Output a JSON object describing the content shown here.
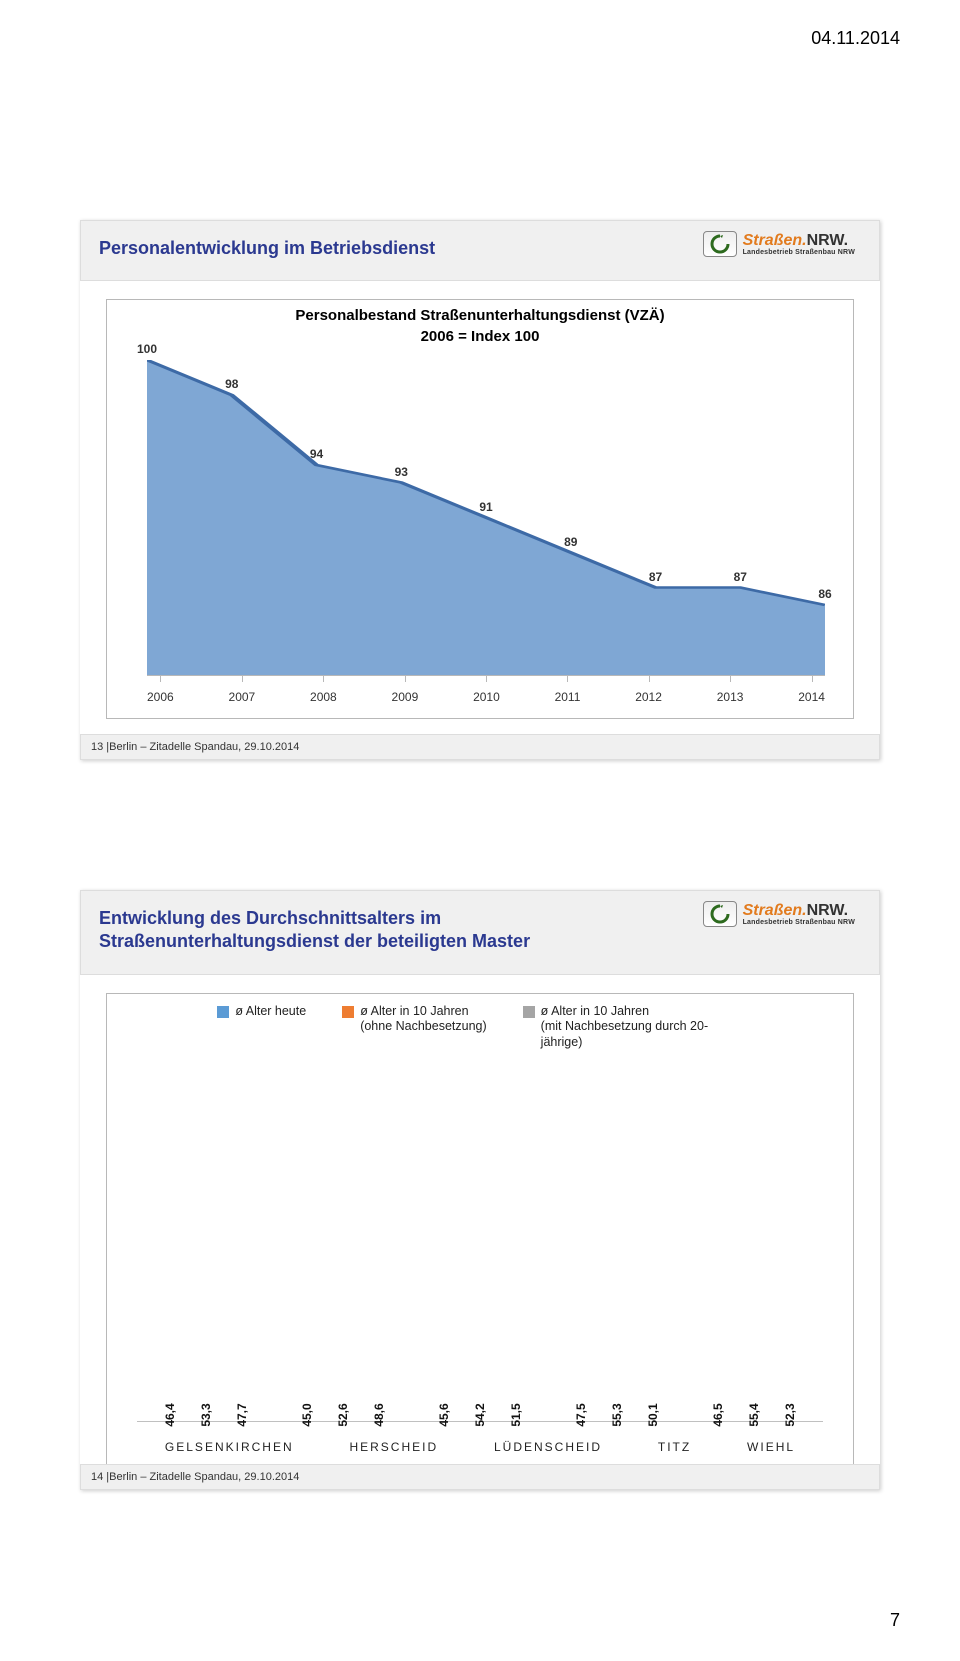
{
  "page": {
    "date_top": "04.11.2014",
    "pagenum": "7"
  },
  "logo": {
    "main_left": "Straßen.",
    "main_right": "NRW.",
    "sub": "Landesbetrieb Straßenbau NRW"
  },
  "slide1": {
    "title": "Personalentwicklung im Betriebsdienst",
    "chart": {
      "type": "area",
      "title_l1": "Personalbestand Straßenunterhaltungsdienst (VZÄ)",
      "title_l2": "2006 = Index 100",
      "categories": [
        "2006",
        "2007",
        "2008",
        "2009",
        "2010",
        "2011",
        "2012",
        "2013",
        "2014"
      ],
      "values": [
        100,
        98,
        94,
        93,
        91,
        89,
        87,
        87,
        86
      ],
      "y_max": 100,
      "y_min": 82,
      "fill_color": "#7fa7d4",
      "line_color": "#3d6aa6"
    },
    "footer": "13 |Berlin – Zitadelle Spandau, 29.10.2014"
  },
  "slide2": {
    "title_l1": "Entwicklung des Durchschnittsalters im",
    "title_l2": "Straßenunterhaltungsdienst der beteiligten Master",
    "chart": {
      "type": "bar",
      "legend": [
        {
          "label": "ø Alter heute",
          "color": "#5b9bd5"
        },
        {
          "label": "ø Alter in 10 Jahren\n(ohne Nachbesetzung)",
          "color": "#ee7d32"
        },
        {
          "label": "ø Alter in 10 Jahren\n(mit Nachbesetzung durch 20-jährige)",
          "color": "#a5a5a5"
        }
      ],
      "y_max": 60,
      "y_min": 0,
      "groups": [
        {
          "name": "GELSENKIRCHEN",
          "values": [
            46.4,
            53.3,
            47.7
          ],
          "labels": [
            "46,4",
            "53,3",
            "47,7"
          ]
        },
        {
          "name": "HERSCHEID",
          "values": [
            45.0,
            52.6,
            48.6
          ],
          "labels": [
            "45,0",
            "52,6",
            "48,6"
          ]
        },
        {
          "name": "LÜDENSCHEID",
          "values": [
            45.6,
            54.2,
            51.5
          ],
          "labels": [
            "45,6",
            "54,2",
            "51,5"
          ]
        },
        {
          "name": "TITZ",
          "values": [
            47.5,
            55.3,
            50.1
          ],
          "labels": [
            "47,5",
            "55,3",
            "50,1"
          ]
        },
        {
          "name": "WIEHL",
          "values": [
            46.5,
            55.4,
            52.3
          ],
          "labels": [
            "46,5",
            "55,4",
            "52,3"
          ]
        }
      ]
    },
    "footer": "14 |Berlin – Zitadelle Spandau, 29.10.2014"
  }
}
